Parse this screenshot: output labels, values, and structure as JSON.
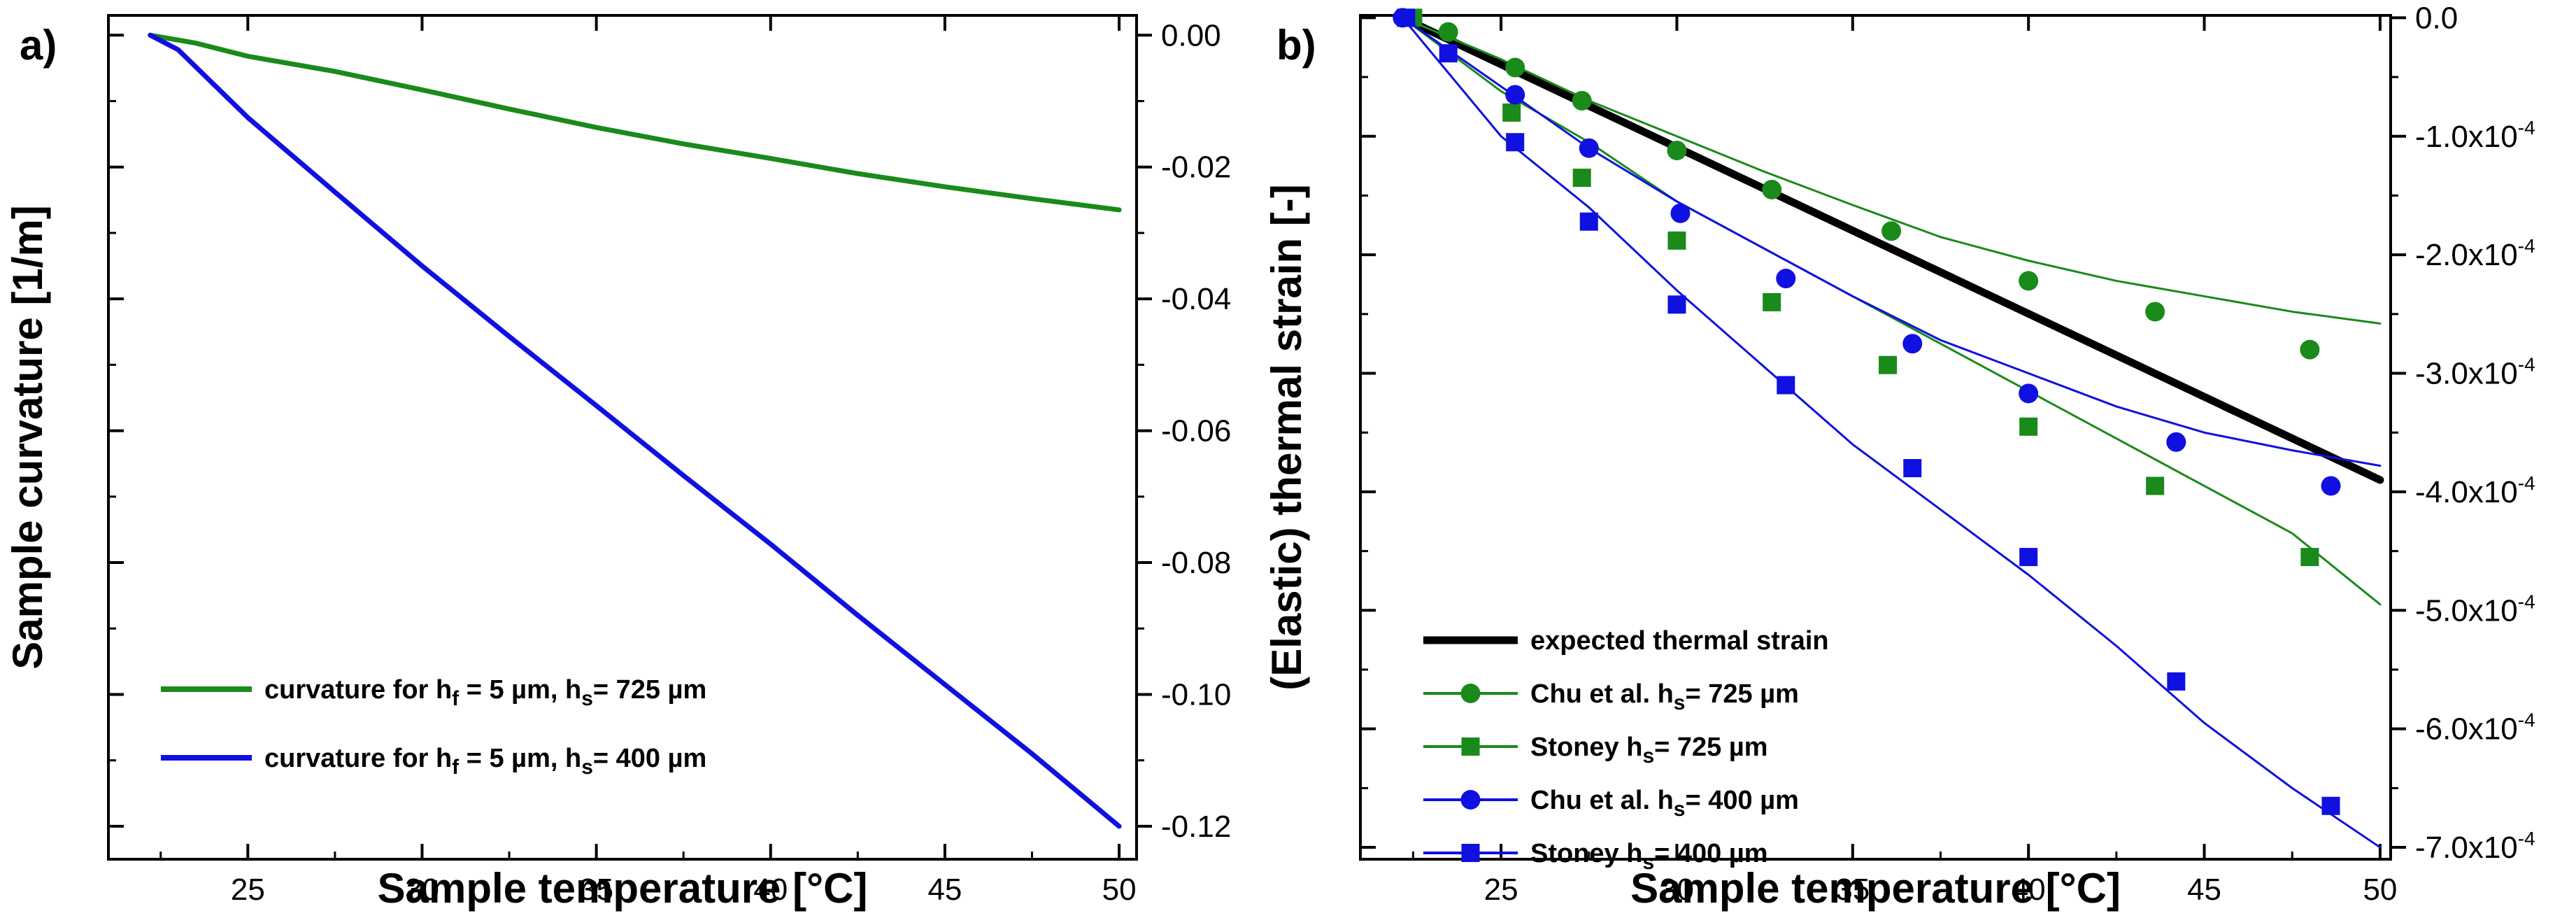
{
  "chart_data": [
    {
      "panel": "a)",
      "type": "line",
      "xlabel": "Sample temperature [°C]",
      "ylabel": "Sample curvature [1/m]",
      "xlim": [
        21,
        50.5
      ],
      "ylim": [
        -0.125,
        0.003
      ],
      "x_ticks": [
        25,
        30,
        35,
        40,
        45,
        50
      ],
      "x_tick_labels": [
        "25",
        "30",
        "35",
        "40",
        "45",
        "50"
      ],
      "y_ticks": [
        0.0,
        -0.02,
        -0.04,
        -0.06,
        -0.08,
        -0.1,
        -0.12
      ],
      "y_tick_labels": [
        "0.00",
        "-0.02",
        "-0.04",
        "-0.06",
        "-0.08",
        "-0.10",
        "-0.12"
      ],
      "y_axis_side": "right",
      "legend_position": "bottom-left",
      "series": [
        {
          "name": "curvature for h_f = 5 µm, h_s= 725 µm",
          "legend_parts": [
            "curvature for h",
            "f",
            " = 5 µm, h",
            "s",
            "= 725 µm"
          ],
          "color": "#1a8a1a",
          "x": [
            22.2,
            23.5,
            25,
            27.5,
            30,
            32.5,
            35,
            37.5,
            40,
            42.5,
            45,
            47.5,
            50
          ],
          "y": [
            0.0,
            -0.0012,
            -0.0032,
            -0.0055,
            -0.0083,
            -0.0112,
            -0.014,
            -0.0165,
            -0.0187,
            -0.021,
            -0.023,
            -0.0248,
            -0.0265
          ]
        },
        {
          "name": "curvature for h_f = 5 µm, h_s= 400 µm",
          "legend_parts": [
            "curvature for h",
            "f",
            " = 5 µm, h",
            "s",
            "= 400 µm"
          ],
          "color": "#1010e0",
          "x": [
            22.2,
            23.0,
            25,
            27.5,
            30,
            32.5,
            35,
            37.5,
            40,
            42.5,
            45,
            47.5,
            50
          ],
          "y": [
            0.0,
            -0.0022,
            -0.0125,
            -0.0238,
            -0.035,
            -0.0457,
            -0.0562,
            -0.0668,
            -0.0772,
            -0.088,
            -0.0985,
            -0.109,
            -0.12
          ]
        }
      ]
    },
    {
      "panel": "b)",
      "type": "line",
      "xlabel": "Sample temperature [°C]",
      "ylabel": "(Elastic) thermal strain [-]",
      "xlim": [
        21,
        50.3
      ],
      "ylim": [
        -0.00071,
        2e-06
      ],
      "x_ticks": [
        25,
        30,
        35,
        40,
        45,
        50
      ],
      "x_tick_labels": [
        "25",
        "30",
        "35",
        "40",
        "45",
        "50"
      ],
      "y_ticks": [
        0.0,
        -0.0001,
        -0.0002,
        -0.0003,
        -0.0004,
        -0.0005,
        -0.0006,
        -0.0007
      ],
      "y_tick_labels": [
        {
          "mantissa": "0.0",
          "exp": ""
        },
        {
          "mantissa": "-1.0x10",
          "exp": "-4"
        },
        {
          "mantissa": "-2.0x10",
          "exp": "-4"
        },
        {
          "mantissa": "-3.0x10",
          "exp": "-4"
        },
        {
          "mantissa": "-4.0x10",
          "exp": "-4"
        },
        {
          "mantissa": "-5.0x10",
          "exp": "-4"
        },
        {
          "mantissa": "-6.0x10",
          "exp": "-4"
        },
        {
          "mantissa": "-7.0x10",
          "exp": "-4"
        }
      ],
      "y_axis_side": "right",
      "legend_position": "bottom-left",
      "series": [
        {
          "name": "expected thermal strain",
          "legend_parts": [
            "expected thermal strain",
            "",
            "",
            "",
            ""
          ],
          "color": "#000000",
          "marker": "none",
          "thick": true,
          "x": [
            22.2,
            50
          ],
          "y": [
            0.0,
            -0.00039
          ]
        },
        {
          "name": "Chu et al. h_s= 725 µm",
          "legend_parts": [
            "Chu et al. h",
            "s",
            "= 725 µm",
            "",
            ""
          ],
          "color": "#1a8a1a",
          "marker": "circle",
          "x": [
            22.2,
            25,
            27.5,
            30,
            32.5,
            35,
            37.5,
            40,
            42.5,
            45,
            47.5,
            50
          ],
          "y": [
            0.0,
            -3.5e-05,
            -7e-05,
            -0.0001,
            -0.00013,
            -0.000158,
            -0.000185,
            -0.000205,
            -0.000222,
            -0.000235,
            -0.000248,
            -0.000258
          ],
          "marker_x": [
            23.5,
            25.4,
            27.3,
            30.0,
            32.7,
            36.1,
            40.0,
            43.6,
            48.0
          ],
          "marker_y": [
            -1.2e-05,
            -4.2e-05,
            -7e-05,
            -0.000112,
            -0.000145,
            -0.00018,
            -0.000222,
            -0.000248,
            -0.00028
          ]
        },
        {
          "name": "Stoney h_s= 725 µm",
          "legend_parts": [
            "Stoney h",
            "s",
            "= 725 µm",
            "",
            ""
          ],
          "color": "#1a8a1a",
          "marker": "square",
          "x": [
            22.2,
            25,
            27.5,
            30,
            32.5,
            35,
            37.5,
            40,
            42.5,
            45,
            47.5,
            50
          ],
          "y": [
            0.0,
            -6.2e-05,
            -0.000105,
            -0.000155,
            -0.000195,
            -0.000235,
            -0.000275,
            -0.000315,
            -0.000355,
            -0.000395,
            -0.000435,
            -0.000495
          ],
          "marker_x": [
            22.5,
            25.3,
            27.3,
            30.0,
            32.7,
            36.0,
            40.0,
            43.6,
            48.0
          ],
          "marker_y": [
            0.0,
            -8e-05,
            -0.000135,
            -0.000188,
            -0.00024,
            -0.000293,
            -0.000345,
            -0.000395,
            -0.000455
          ]
        },
        {
          "name": "Chu et al. h_s= 400 µm",
          "legend_parts": [
            "Chu et al. h",
            "s",
            "= 400 µm",
            "",
            ""
          ],
          "color": "#1010e0",
          "marker": "circle",
          "x": [
            22.2,
            25,
            27.5,
            30,
            32.5,
            35,
            37.5,
            40,
            42.5,
            45,
            47.5,
            50
          ],
          "y": [
            0.0,
            -5.8e-05,
            -0.00011,
            -0.000155,
            -0.000195,
            -0.000235,
            -0.000272,
            -0.0003,
            -0.000328,
            -0.00035,
            -0.000365,
            -0.000378
          ],
          "marker_x": [
            22.2,
            25.4,
            27.5,
            30.1,
            33.1,
            36.7,
            40.0,
            44.2,
            48.6
          ],
          "marker_y": [
            0.0,
            -6.5e-05,
            -0.00011,
            -0.000165,
            -0.00022,
            -0.000275,
            -0.000317,
            -0.000358,
            -0.000395
          ]
        },
        {
          "name": "Stoney h_s= 400 µm",
          "legend_parts": [
            "Stoney h",
            "s",
            "= 400 µm",
            "",
            ""
          ],
          "color": "#1010e0",
          "marker": "square",
          "x": [
            22.2,
            25,
            27.5,
            30,
            32.5,
            35,
            37.5,
            40,
            42.5,
            45,
            47.5,
            50
          ],
          "y": [
            0.0,
            -0.0001,
            -0.00016,
            -0.00023,
            -0.000295,
            -0.00036,
            -0.000415,
            -0.00047,
            -0.00053,
            -0.000595,
            -0.00065,
            -0.0007
          ],
          "marker_x": [
            22.3,
            23.5,
            25.4,
            27.5,
            30.0,
            33.1,
            36.7,
            40.0,
            44.2,
            48.6
          ],
          "marker_y": [
            0.0,
            -3e-05,
            -0.000105,
            -0.000172,
            -0.000242,
            -0.00031,
            -0.00038,
            -0.000455,
            -0.00056,
            -0.000665
          ]
        }
      ]
    }
  ]
}
